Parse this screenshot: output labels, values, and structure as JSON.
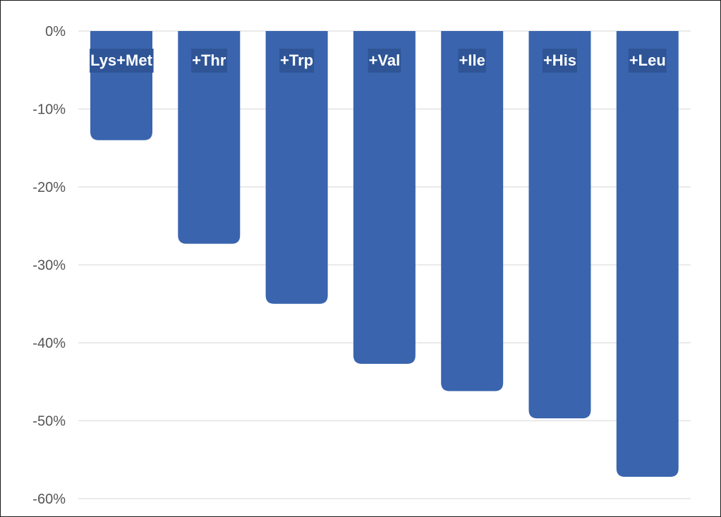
{
  "chart_data": {
    "type": "bar",
    "categories": [
      "Lys+Met",
      "+Thr",
      "+Trp",
      "+Val",
      "+Ile",
      "+His",
      "+Leu"
    ],
    "values": [
      -14,
      -27.3,
      -35,
      -42.7,
      -46.2,
      -49.7,
      -57.2
    ],
    "yticks": [
      "0%",
      "-10%",
      "-20%",
      "-30%",
      "-40%",
      "-50%",
      "-60%"
    ],
    "ylim": [
      -60,
      0
    ],
    "title": "",
    "xlabel": "",
    "ylabel": "",
    "grid": true,
    "bar_color": "#3a64ae",
    "label_bg_color": "#2f5597",
    "grid_color": "#e3e3e3"
  }
}
